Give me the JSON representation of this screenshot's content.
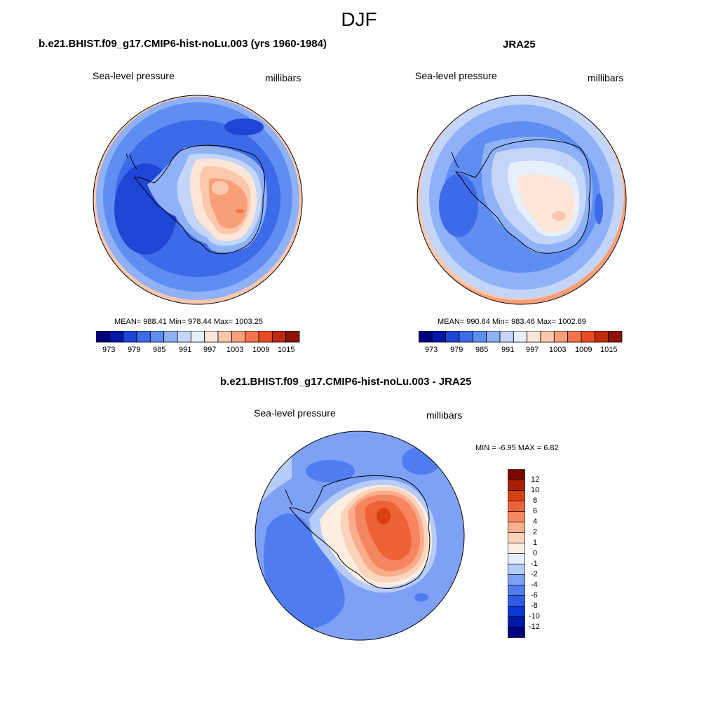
{
  "title": "DJF",
  "colors": {
    "land_outline": "#000000",
    "abs_scale": [
      "#00007f",
      "#0018a8",
      "#1f45d6",
      "#3d6ae8",
      "#5f8ef2",
      "#8fb1f7",
      "#c3d6fa",
      "#e6f0fd",
      "#fde6d8",
      "#fcc8ad",
      "#f9a07a",
      "#f4754d",
      "#e84b25",
      "#c22a0f",
      "#8f1206"
    ],
    "diff_scale": [
      "#00007f",
      "#0018a8",
      "#0a36d2",
      "#2e5be6",
      "#4f7cf0",
      "#7ea1f5",
      "#b7cdf9",
      "#e3edfd",
      "#fdeee2",
      "#fcd3bb",
      "#f9ad8b",
      "#f58660",
      "#ef6238",
      "#d9400f",
      "#a82004",
      "#7a0a00"
    ]
  },
  "panels": {
    "model": {
      "title": "b.e21.BHIST.f09_g17.CMIP6-hist-noLu.003 (yrs 1960-1984)",
      "left_label": "Sea-level pressure",
      "right_label": "millibars",
      "stats": "MEAN= 988.41   Min= 978.44   Max= 1003.25",
      "colorbar_ticks": [
        "973",
        "979",
        "985",
        "991",
        "997",
        "1003",
        "1009",
        "1015"
      ]
    },
    "obs": {
      "title": "JRA25",
      "left_label": "Sea-level pressure",
      "right_label": "millibars",
      "stats": "MEAN= 990.64   Min= 983.46   Max= 1002.69",
      "colorbar_ticks": [
        "973",
        "979",
        "985",
        "991",
        "997",
        "1003",
        "1009",
        "1015"
      ]
    },
    "diff": {
      "title": "b.e21.BHIST.f09_g17.CMIP6-hist-noLu.003 - JRA25",
      "left_label": "Sea-level pressure",
      "right_label": "millibars",
      "stats": "MIN =  -6.95 MAX =   6.82",
      "colorbar_ticks": [
        "12",
        "10",
        "8",
        "6",
        "4",
        "2",
        "1",
        "0",
        "-1",
        "-2",
        "-4",
        "-6",
        "-8",
        "-10",
        "-12"
      ]
    }
  }
}
